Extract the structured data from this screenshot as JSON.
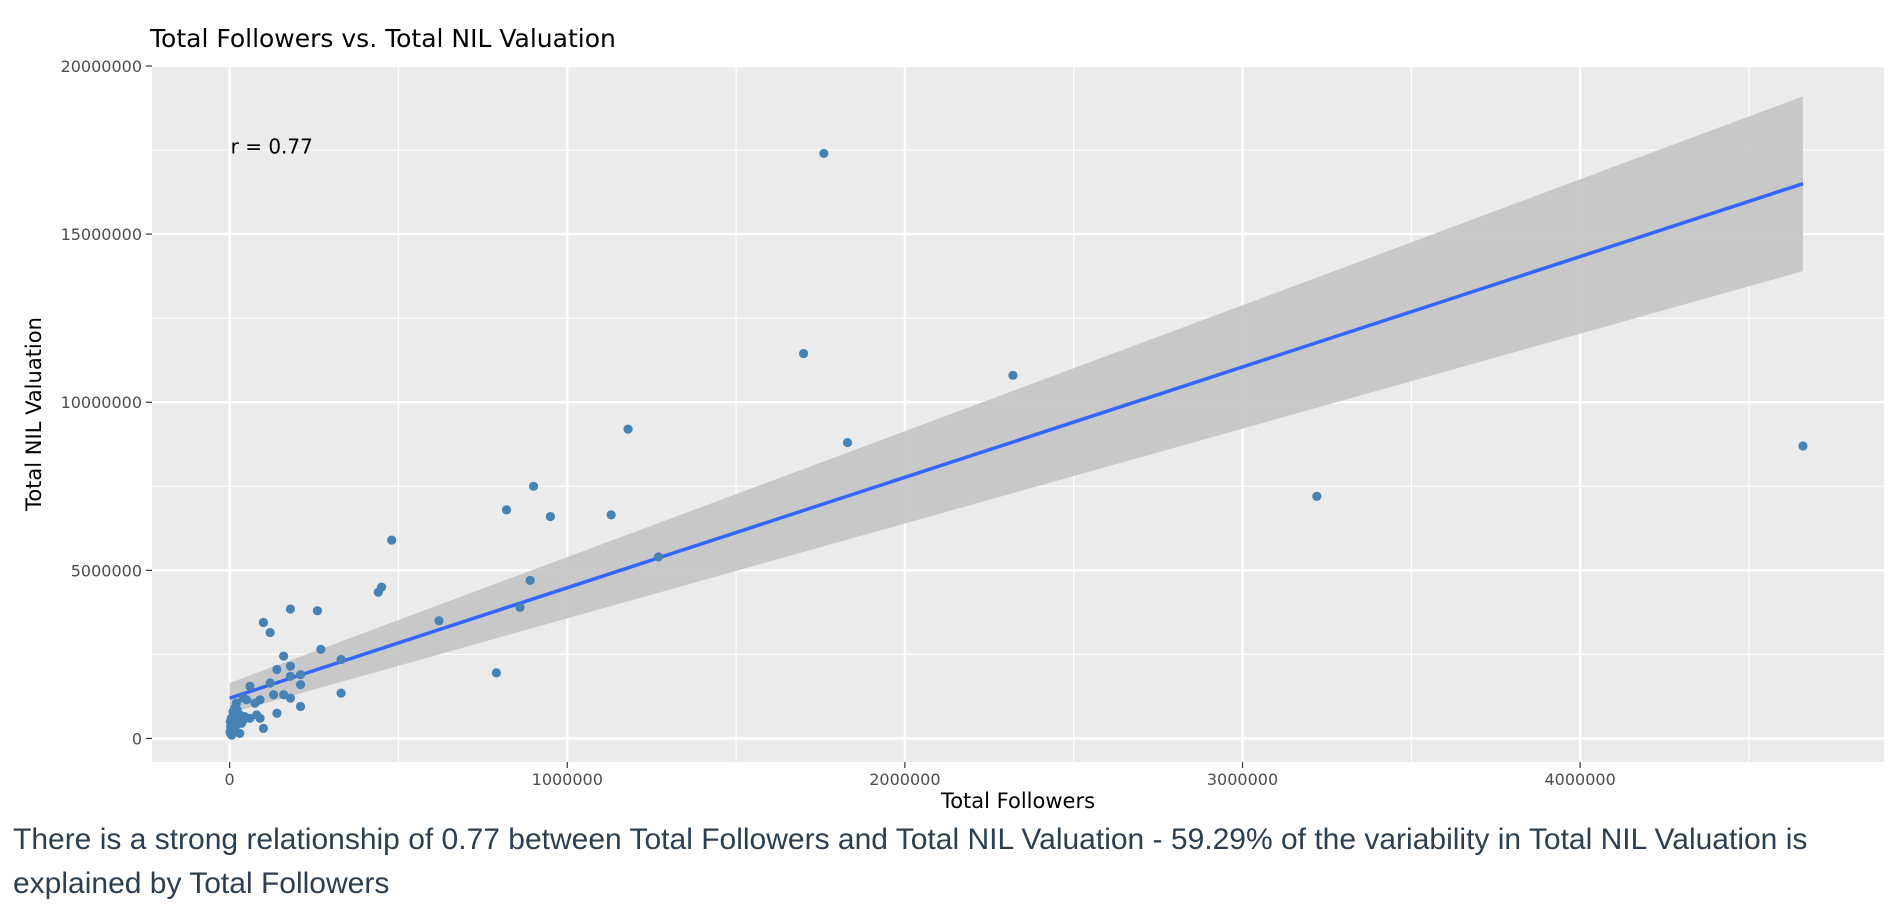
{
  "chart_data": {
    "type": "scatter",
    "title": "Total Followers vs. Total NIL Valuation",
    "xlabel": "Total Followers",
    "ylabel": "Total NIL Valuation",
    "xlim": [
      -230000,
      4900000
    ],
    "ylim": [
      -700000,
      20000000
    ],
    "x_ticks": [
      0,
      1000000,
      2000000,
      3000000,
      4000000
    ],
    "x_tick_labels": [
      "0",
      "1000000",
      "2000000",
      "3000000",
      "4000000"
    ],
    "y_ticks": [
      0,
      5000000,
      10000000,
      15000000,
      20000000
    ],
    "y_tick_labels": [
      "0",
      "5000000",
      "10000000",
      "15000000",
      "20000000"
    ],
    "grid": true,
    "annotation": "r = 0.77",
    "r": 0.77,
    "points": [
      [
        1760000,
        17400000
      ],
      [
        1700000,
        11450000
      ],
      [
        2320000,
        10800000
      ],
      [
        1830000,
        8800000
      ],
      [
        4660000,
        8700000
      ],
      [
        1180000,
        9200000
      ],
      [
        3220000,
        7200000
      ],
      [
        900000,
        7500000
      ],
      [
        820000,
        6800000
      ],
      [
        950000,
        6600000
      ],
      [
        1130000,
        6650000
      ],
      [
        480000,
        5900000
      ],
      [
        1270000,
        5400000
      ],
      [
        890000,
        4700000
      ],
      [
        450000,
        4500000
      ],
      [
        440000,
        4350000
      ],
      [
        860000,
        3900000
      ],
      [
        790000,
        1950000
      ],
      [
        620000,
        3500000
      ],
      [
        260000,
        3800000
      ],
      [
        180000,
        3850000
      ],
      [
        100000,
        3450000
      ],
      [
        120000,
        3150000
      ],
      [
        270000,
        2650000
      ],
      [
        330000,
        2350000
      ],
      [
        160000,
        2450000
      ],
      [
        180000,
        2150000
      ],
      [
        140000,
        2050000
      ],
      [
        210000,
        1900000
      ],
      [
        180000,
        1850000
      ],
      [
        210000,
        1600000
      ],
      [
        120000,
        1650000
      ],
      [
        60000,
        1550000
      ],
      [
        130000,
        1300000
      ],
      [
        160000,
        1300000
      ],
      [
        180000,
        1200000
      ],
      [
        90000,
        1150000
      ],
      [
        75000,
        1050000
      ],
      [
        40000,
        1200000
      ],
      [
        50000,
        1150000
      ],
      [
        330000,
        1350000
      ],
      [
        210000,
        950000
      ],
      [
        140000,
        750000
      ],
      [
        80000,
        700000
      ],
      [
        30000,
        700000
      ],
      [
        90000,
        600000
      ],
      [
        60000,
        600000
      ],
      [
        40000,
        550000
      ],
      [
        100000,
        300000
      ],
      [
        30000,
        150000
      ],
      [
        20000,
        1050000
      ],
      [
        15000,
        900000
      ],
      [
        10000,
        800000
      ],
      [
        5000,
        600000
      ],
      [
        2000,
        500000
      ],
      [
        8000,
        450000
      ],
      [
        3000,
        350000
      ],
      [
        12000,
        250000
      ],
      [
        1000,
        200000
      ],
      [
        6000,
        100000
      ],
      [
        20000,
        400000
      ],
      [
        25000,
        600000
      ],
      [
        15000,
        300000
      ],
      [
        35000,
        450000
      ],
      [
        10000,
        550000
      ],
      [
        4000,
        250000
      ],
      [
        18000,
        700000
      ],
      [
        22000,
        850000
      ],
      [
        7000,
        380000
      ],
      [
        28000,
        500000
      ],
      [
        45000,
        650000
      ],
      [
        2500,
        150000
      ]
    ],
    "trend_line": {
      "x": [
        0,
        4660000
      ],
      "y": [
        1200000,
        16500000
      ]
    },
    "confidence_band": {
      "x": [
        0,
        4660000
      ],
      "upper": [
        1650000,
        19100000
      ],
      "lower": [
        750000,
        13900000
      ]
    },
    "colors": {
      "point": "#4682b4",
      "trend": "#3366ff",
      "band": "#c6c6c6",
      "panel": "#ebebeb",
      "grid": "#ffffff",
      "tick_text": "#4d4d4d"
    }
  },
  "caption": "There is a strong relationship of 0.77 between Total Followers and Total NIL Valuation - 59.29% of the variability in Total NIL Valuation is explained by Total Followers"
}
